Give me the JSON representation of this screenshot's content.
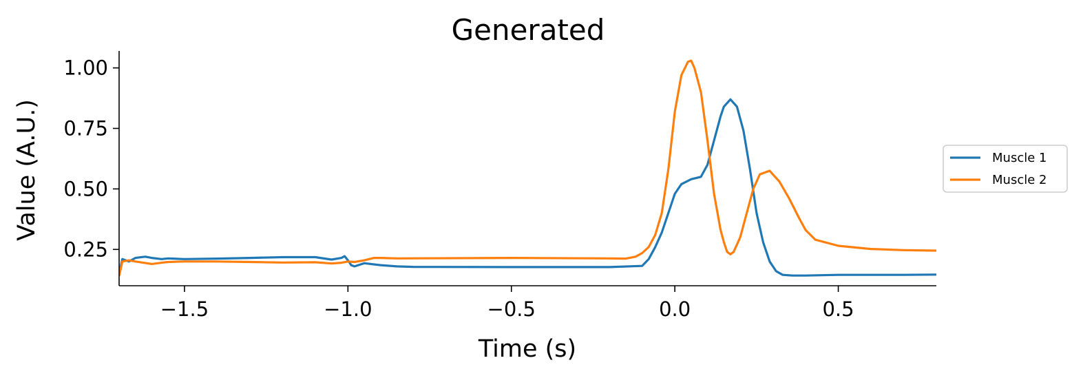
{
  "chart_data": {
    "type": "line",
    "title": "Generated",
    "xlabel": "Time (s)",
    "ylabel": "Value (A.U.)",
    "xlim": [
      -1.7,
      0.8
    ],
    "ylim": [
      0.1,
      1.07
    ],
    "xticks": [
      -1.5,
      -1.0,
      -0.5,
      0.0,
      0.5
    ],
    "xtick_labels": [
      "−1.5",
      "−1.0",
      "−0.5",
      "0.0",
      "0.5"
    ],
    "yticks": [
      0.25,
      0.5,
      0.75,
      1.0
    ],
    "ytick_labels": [
      "0.25",
      "0.50",
      "0.75",
      "1.00"
    ],
    "grid": false,
    "legend_position": "right",
    "series": [
      {
        "name": "Muscle 1",
        "color": "#1f77b4",
        "x": [
          -1.7,
          -1.69,
          -1.67,
          -1.65,
          -1.62,
          -1.6,
          -1.57,
          -1.55,
          -1.5,
          -1.4,
          -1.3,
          -1.2,
          -1.1,
          -1.05,
          -1.02,
          -1.01,
          -1.0,
          -0.99,
          -0.98,
          -0.95,
          -0.9,
          -0.85,
          -0.8,
          -0.5,
          -0.2,
          -0.1,
          -0.08,
          -0.06,
          -0.04,
          -0.02,
          0.0,
          0.02,
          0.05,
          0.08,
          0.1,
          0.12,
          0.14,
          0.15,
          0.17,
          0.19,
          0.21,
          0.23,
          0.25,
          0.27,
          0.29,
          0.31,
          0.33,
          0.36,
          0.4,
          0.5,
          0.6,
          0.7,
          0.8
        ],
        "y": [
          0.15,
          0.21,
          0.2,
          0.215,
          0.22,
          0.215,
          0.21,
          0.213,
          0.21,
          0.212,
          0.215,
          0.218,
          0.218,
          0.208,
          0.215,
          0.222,
          0.205,
          0.185,
          0.18,
          0.193,
          0.185,
          0.18,
          0.178,
          0.177,
          0.177,
          0.182,
          0.21,
          0.26,
          0.32,
          0.4,
          0.48,
          0.52,
          0.54,
          0.55,
          0.6,
          0.7,
          0.8,
          0.84,
          0.87,
          0.84,
          0.74,
          0.58,
          0.4,
          0.28,
          0.2,
          0.16,
          0.145,
          0.142,
          0.142,
          0.145,
          0.145,
          0.145,
          0.146
        ]
      },
      {
        "name": "Muscle 2",
        "color": "#ff7f0e",
        "x": [
          -1.7,
          -1.69,
          -1.67,
          -1.65,
          -1.6,
          -1.57,
          -1.55,
          -1.5,
          -1.4,
          -1.3,
          -1.2,
          -1.1,
          -1.05,
          -1.02,
          -1.0,
          -0.98,
          -0.95,
          -0.92,
          -0.9,
          -0.85,
          -0.5,
          -0.2,
          -0.15,
          -0.12,
          -0.1,
          -0.08,
          -0.06,
          -0.04,
          -0.02,
          0.0,
          0.02,
          0.04,
          0.05,
          0.06,
          0.08,
          0.1,
          0.12,
          0.14,
          0.15,
          0.16,
          0.17,
          0.18,
          0.2,
          0.22,
          0.24,
          0.26,
          0.28,
          0.29,
          0.3,
          0.32,
          0.35,
          0.38,
          0.4,
          0.43,
          0.5,
          0.6,
          0.7,
          0.8
        ],
        "y": [
          0.14,
          0.2,
          0.205,
          0.2,
          0.19,
          0.195,
          0.198,
          0.2,
          0.2,
          0.198,
          0.196,
          0.197,
          0.192,
          0.195,
          0.2,
          0.198,
          0.205,
          0.215,
          0.215,
          0.213,
          0.215,
          0.213,
          0.212,
          0.22,
          0.235,
          0.26,
          0.31,
          0.4,
          0.58,
          0.82,
          0.97,
          1.025,
          1.03,
          1.0,
          0.9,
          0.7,
          0.48,
          0.33,
          0.28,
          0.24,
          0.23,
          0.24,
          0.3,
          0.4,
          0.5,
          0.56,
          0.57,
          0.575,
          0.56,
          0.53,
          0.46,
          0.38,
          0.33,
          0.29,
          0.265,
          0.252,
          0.247,
          0.245
        ]
      }
    ]
  }
}
